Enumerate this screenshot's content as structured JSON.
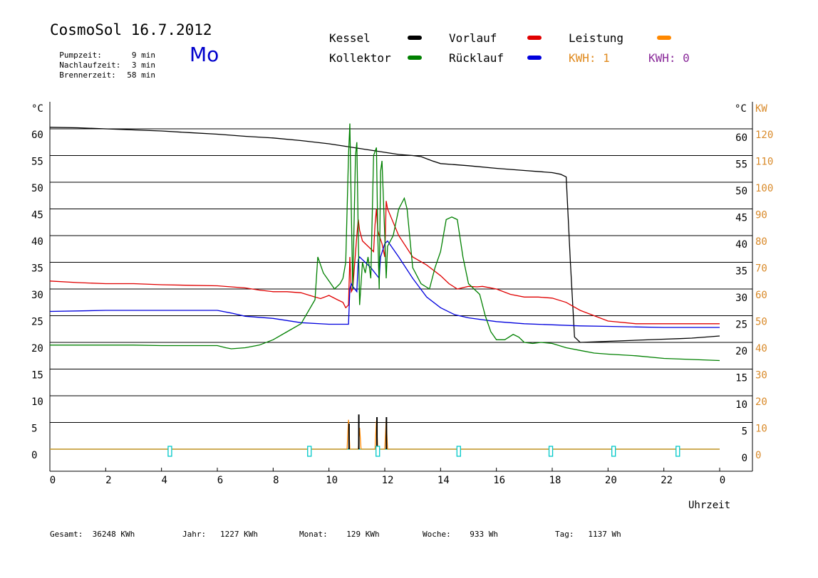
{
  "header": {
    "title": "CosmoSol 16.7.2012",
    "weekday": "Mo",
    "stats": [
      {
        "label": "Pumpzeit:",
        "value": "9 min"
      },
      {
        "label": "Nachlaufzeit:",
        "value": "3 min"
      },
      {
        "label": "Brennerzeit:",
        "value": "58 min"
      }
    ]
  },
  "legend": {
    "kessel": {
      "label": "Kessel",
      "color": "#000000"
    },
    "kollektor": {
      "label": "Kollektor",
      "color": "#008000"
    },
    "vorlauf": {
      "label": "Vorlauf",
      "color": "#e00000"
    },
    "ruecklauf": {
      "label": "Rücklauf",
      "color": "#0000dd"
    },
    "leistung": {
      "label": "Leistung",
      "color": "#ff8800"
    },
    "kwh1": {
      "label": "KWH: 1",
      "color": "#e08a1e"
    },
    "kwh0": {
      "label": "KWH: 0",
      "color": "#8a2a9a"
    }
  },
  "footer": [
    {
      "label": "Gesamt:",
      "value": "36248 KWh"
    },
    {
      "label": "Jahr:",
      "value": "1227 KWh"
    },
    {
      "label": "Monat:",
      "value": "129 KWh"
    },
    {
      "label": "Woche:",
      "value": "933 Wh"
    },
    {
      "label": "Tag:",
      "value": "1137 Wh"
    }
  ],
  "chart_data": {
    "type": "line",
    "xlabel": "Uhrzeit",
    "ylabel_left": "°C",
    "ylabel_right": [
      "°C",
      "KW"
    ],
    "xlim": [
      0,
      24
    ],
    "x_tick_labels": [
      "0",
      "2",
      "4",
      "6",
      "8",
      "10",
      "12",
      "14",
      "16",
      "18",
      "20",
      "22",
      "0"
    ],
    "ylim": [
      0,
      65
    ],
    "y_ticks": [
      0,
      5,
      10,
      15,
      20,
      25,
      30,
      35,
      40,
      45,
      50,
      55,
      60
    ],
    "y2_kw_ticks": [
      0,
      10,
      20,
      30,
      40,
      50,
      60,
      70,
      80,
      90,
      100,
      110,
      120
    ],
    "grid": true,
    "series": [
      {
        "name": "Kessel",
        "color": "#000000",
        "x": [
          0,
          1,
          2,
          3,
          4,
          5,
          6,
          7,
          8,
          9,
          10,
          10.5,
          11,
          11.5,
          12,
          12.5,
          13,
          13.3,
          13.7,
          14,
          15,
          16,
          17,
          18,
          18.3,
          18.5,
          18.65,
          18.8,
          19,
          20,
          21,
          22,
          22.5,
          23,
          23.5,
          24
        ],
        "y": [
          60.3,
          60.2,
          60,
          59.8,
          59.6,
          59.3,
          59,
          58.6,
          58.3,
          57.8,
          57.2,
          56.8,
          56.4,
          56,
          55.6,
          55.2,
          55,
          54.8,
          54,
          53.5,
          53.1,
          52.6,
          52.2,
          51.8,
          51.5,
          51,
          35,
          21,
          20,
          20.2,
          20.4,
          20.6,
          20.7,
          20.8,
          21,
          21.2
        ]
      },
      {
        "name": "Vorlauf",
        "color": "#e00000",
        "x": [
          0,
          1,
          2,
          3,
          4,
          5,
          6,
          7,
          7.5,
          8,
          8.5,
          9,
          9.5,
          9.7,
          10,
          10.3,
          10.5,
          10.6,
          10.7,
          10.75,
          10.8,
          10.85,
          11,
          11.05,
          11.1,
          11.2,
          11.4,
          11.6,
          11.65,
          11.7,
          11.75,
          11.8,
          11.9,
          12,
          12.05,
          12.1,
          12.5,
          13,
          13.5,
          14,
          14.3,
          14.6,
          15,
          15.3,
          15.5,
          16,
          16.5,
          17,
          17.5,
          18,
          18.5,
          19,
          20,
          21,
          22,
          23,
          24
        ],
        "y": [
          31.5,
          31.2,
          31,
          31,
          30.8,
          30.7,
          30.6,
          30.2,
          29.8,
          29.5,
          29.5,
          29.3,
          28.5,
          28.2,
          28.8,
          28,
          27.5,
          26.5,
          27,
          36,
          29.5,
          30,
          40,
          43,
          41,
          39,
          38,
          37,
          42,
          45,
          41,
          40,
          38.5,
          36,
          46.5,
          45,
          40,
          36,
          34.5,
          32.5,
          31,
          30,
          30.5,
          30.4,
          30.5,
          30,
          29,
          28.5,
          28.5,
          28.3,
          27.5,
          26,
          24,
          23.5,
          23.5,
          23.5,
          23.5
        ]
      },
      {
        "name": "Rücklauf",
        "color": "#0000dd",
        "x": [
          0,
          1,
          2,
          3,
          4,
          5,
          6,
          6.5,
          7,
          8,
          9,
          10,
          10.6,
          10.7,
          10.75,
          10.8,
          10.85,
          11,
          11.05,
          11.1,
          11.5,
          11.8,
          11.85,
          12,
          12.1,
          12.5,
          13,
          13.5,
          14,
          14.5,
          15,
          16,
          17,
          18,
          19,
          20,
          21,
          22,
          23,
          24
        ],
        "y": [
          25.8,
          25.9,
          26,
          26,
          26,
          26,
          26,
          25.5,
          24.9,
          24.5,
          23.7,
          23.4,
          23.4,
          23.4,
          30,
          31,
          30.5,
          29.5,
          35.5,
          36,
          34,
          32,
          36,
          38.5,
          39,
          36,
          32,
          28.5,
          26.5,
          25.2,
          24.6,
          23.9,
          23.5,
          23.3,
          23.1,
          23,
          22.9,
          22.8,
          22.8,
          22.8
        ]
      },
      {
        "name": "Kollektor",
        "color": "#008000",
        "x": [
          0,
          1,
          2,
          3,
          4,
          5,
          6,
          6.3,
          6.5,
          7,
          7.5,
          8,
          8.5,
          9,
          9.5,
          9.6,
          9.8,
          10,
          10.2,
          10.4,
          10.5,
          10.6,
          10.7,
          10.75,
          10.8,
          10.85,
          10.95,
          11,
          11.05,
          11.1,
          11.2,
          11.3,
          11.4,
          11.5,
          11.6,
          11.7,
          11.75,
          11.8,
          11.85,
          11.9,
          12,
          12.05,
          12.1,
          12.3,
          12.5,
          12.6,
          12.7,
          12.8,
          13,
          13.3,
          13.6,
          13.8,
          14,
          14.2,
          14.4,
          14.6,
          14.8,
          15,
          15.2,
          15.4,
          15.6,
          15.8,
          16,
          16.3,
          16.6,
          16.8,
          17,
          17.3,
          17.6,
          18,
          18.5,
          19,
          19.5,
          20,
          21,
          22,
          23,
          24
        ],
        "y": [
          19.5,
          19.5,
          19.5,
          19.5,
          19.4,
          19.4,
          19.4,
          19,
          18.8,
          19,
          19.5,
          20.5,
          22,
          23.5,
          28,
          36,
          33,
          31.5,
          30,
          31,
          32,
          35,
          55,
          61,
          45,
          30,
          55,
          57.5,
          40,
          27,
          35,
          33,
          36,
          32,
          55,
          56.5,
          40,
          30,
          52,
          54,
          40,
          32,
          38,
          40,
          45,
          46,
          47,
          45,
          34,
          31,
          30,
          34,
          37,
          43,
          43.5,
          43,
          36,
          31,
          30,
          29,
          25,
          22,
          20.5,
          20.5,
          21.5,
          21,
          20,
          19.8,
          20,
          19.8,
          19,
          18.5,
          18,
          17.8,
          17.5,
          17,
          16.8,
          16.6
        ]
      },
      {
        "name": "Leistung",
        "color": "#ff8800",
        "x": [
          0,
          10.6,
          10.65,
          10.7,
          10.75,
          10.8,
          10.85,
          11,
          11.05,
          11.1,
          11.15,
          11.2,
          11.6,
          11.65,
          11.7,
          11.75,
          11.8,
          11.95,
          12,
          12.05,
          12.1,
          12.15,
          24
        ],
        "y": [
          0,
          0,
          0,
          5.5,
          0,
          0,
          0,
          0,
          0,
          4,
          0,
          0,
          0,
          0,
          5.3,
          0,
          0,
          0,
          0,
          5.3,
          0,
          0,
          0
        ]
      }
    ],
    "bars_black": [
      {
        "x": 10.72,
        "y": 4.8
      },
      {
        "x": 11.07,
        "y": 6.5
      },
      {
        "x": 11.72,
        "y": 6.0
      },
      {
        "x": 12.06,
        "y": 6.0
      }
    ],
    "markers_cyan": [
      4.3,
      9.3,
      11.75,
      14.65,
      17.95,
      20.2,
      22.5
    ]
  }
}
